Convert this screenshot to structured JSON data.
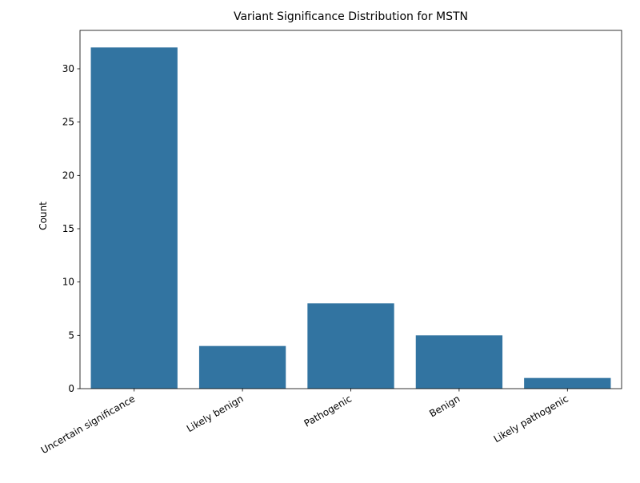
{
  "chart_data": {
    "type": "bar",
    "title": "Variant Significance Distribution for MSTN",
    "xlabel": "",
    "ylabel": "Count",
    "categories": [
      "Uncertain significance",
      "Likely benign",
      "Pathogenic",
      "Benign",
      "Likely pathogenic"
    ],
    "values": [
      32,
      4,
      8,
      5,
      1
    ],
    "ylim": [
      0,
      33.6
    ],
    "yticks": [
      0,
      5,
      10,
      15,
      20,
      25,
      30
    ],
    "bar_color": "#3274a1",
    "grid": false,
    "legend": "none"
  }
}
